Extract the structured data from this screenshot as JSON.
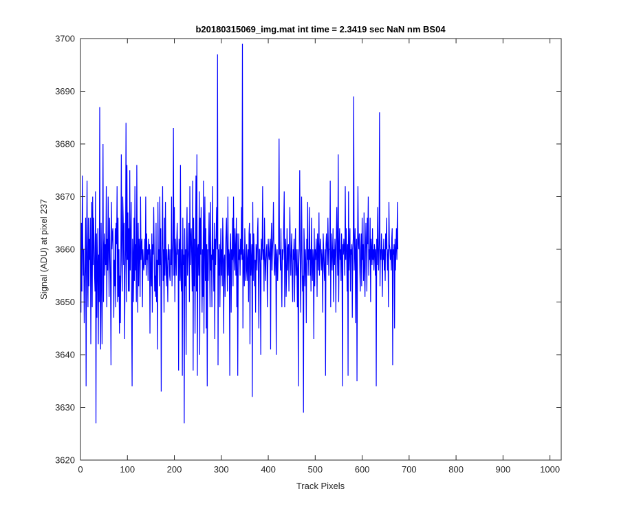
{
  "chart_data": {
    "type": "line",
    "title": "b20180315069_img.mat int time = 2.3419 sec  NaN nm BS04",
    "xlabel": "Track Pixels",
    "ylabel": "Signal (ADU) at pixel 237",
    "xlim": [
      0,
      1024
    ],
    "ylim": [
      3620,
      3700
    ],
    "xticks": [
      0,
      100,
      200,
      300,
      400,
      500,
      600,
      700,
      800,
      900,
      1000
    ],
    "yticks": [
      3620,
      3630,
      3640,
      3650,
      3660,
      3670,
      3680,
      3690,
      3700
    ],
    "grid": false,
    "series_color": "#0000ff",
    "series": [
      {
        "x_start": 1,
        "x_step": 1,
        "values": [
          3648,
          3665,
          3652,
          3674,
          3661,
          3655,
          3660,
          3646,
          3653,
          3658,
          3666,
          3634,
          3660,
          3673,
          3655,
          3649,
          3666,
          3653,
          3662,
          3658,
          3666,
          3642,
          3656,
          3669,
          3649,
          3670,
          3657,
          3666,
          3661,
          3655,
          3652,
          3671,
          3627,
          3663,
          3647,
          3657,
          3664,
          3642,
          3659,
          3650,
          3687,
          3651,
          3641,
          3665,
          3655,
          3642,
          3658,
          3680,
          3650,
          3660,
          3663,
          3655,
          3661,
          3657,
          3672,
          3649,
          3662,
          3656,
          3670,
          3660,
          3651,
          3666,
          3660,
          3654,
          3638,
          3669,
          3660,
          3663,
          3664,
          3658,
          3647,
          3658,
          3653,
          3664,
          3649,
          3665,
          3661,
          3672,
          3650,
          3666,
          3651,
          3660,
          3644,
          3655,
          3646,
          3659,
          3678,
          3658,
          3652,
          3670,
          3666,
          3657,
          3665,
          3643,
          3655,
          3660,
          3684,
          3650,
          3676,
          3658,
          3667,
          3652,
          3664,
          3652,
          3675,
          3656,
          3661,
          3669,
          3647,
          3634,
          3662,
          3659,
          3650,
          3666,
          3654,
          3672,
          3656,
          3661,
          3650,
          3676,
          3659,
          3648,
          3665,
          3653,
          3662,
          3660,
          3651,
          3670,
          3658,
          3661,
          3662,
          3649,
          3660,
          3657,
          3656,
          3658,
          3662,
          3657,
          3670,
          3655,
          3663,
          3658,
          3660,
          3654,
          3662,
          3659,
          3661,
          3644,
          3660,
          3656,
          3653,
          3663,
          3648,
          3661,
          3659,
          3668,
          3660,
          3652,
          3655,
          3651,
          3665,
          3650,
          3658,
          3641,
          3669,
          3657,
          3660,
          3653,
          3670,
          3657,
          3664,
          3633,
          3657,
          3662,
          3672,
          3654,
          3660,
          3648,
          3666,
          3655,
          3669,
          3658,
          3653,
          3660,
          3656,
          3650,
          3661,
          3658,
          3660,
          3655,
          3654,
          3660,
          3657,
          3670,
          3653,
          3659,
          3662,
          3683,
          3655,
          3668,
          3650,
          3662,
          3659,
          3655,
          3661,
          3665,
          3659,
          3660,
          3637,
          3662,
          3660,
          3654,
          3676,
          3655,
          3652,
          3660,
          3636,
          3666,
          3657,
          3659,
          3627,
          3664,
          3653,
          3660,
          3640,
          3662,
          3668,
          3655,
          3658,
          3660,
          3665,
          3650,
          3672,
          3657,
          3662,
          3664,
          3658,
          3652,
          3673,
          3637,
          3666,
          3653,
          3662,
          3644,
          3660,
          3674,
          3652,
          3678,
          3636,
          3660,
          3661,
          3655,
          3671,
          3640,
          3666,
          3659,
          3668,
          3656,
          3648,
          3660,
          3651,
          3673,
          3644,
          3660,
          3670,
          3654,
          3664,
          3645,
          3661,
          3634,
          3660,
          3654,
          3662,
          3667,
          3658,
          3649,
          3669,
          3656,
          3659,
          3649,
          3672,
          3658,
          3660,
          3652,
          3665,
          3643,
          3662,
          3657,
          3663,
          3668,
          3660,
          3697,
          3638,
          3660,
          3655,
          3661,
          3649,
          3658,
          3664,
          3655,
          3660,
          3653,
          3666,
          3661,
          3644,
          3658,
          3659,
          3651,
          3660,
          3663,
          3666,
          3658,
          3652,
          3670,
          3655,
          3660,
          3659,
          3636,
          3661,
          3663,
          3648,
          3660,
          3658,
          3666,
          3653,
          3670,
          3659,
          3656,
          3664,
          3660,
          3655,
          3666,
          3649,
          3663,
          3636,
          3656,
          3663,
          3658,
          3660,
          3655,
          3662,
          3659,
          3668,
          3658,
          3699,
          3645,
          3660,
          3658,
          3653,
          3664,
          3660,
          3654,
          3656,
          3661,
          3654,
          3658,
          3660,
          3650,
          3663,
          3665,
          3642,
          3663,
          3655,
          3658,
          3661,
          3632,
          3669,
          3654,
          3663,
          3660,
          3653,
          3658,
          3648,
          3661,
          3660,
          3656,
          3663,
          3666,
          3654,
          3645,
          3660,
          3660,
          3657,
          3640,
          3662,
          3658,
          3660,
          3672,
          3658,
          3660,
          3652,
          3666,
          3659,
          3654,
          3658,
          3660,
          3661,
          3649,
          3656,
          3662,
          3659,
          3658,
          3660,
          3662,
          3641,
          3661,
          3665,
          3656,
          3660,
          3662,
          3669,
          3660,
          3656,
          3655,
          3661,
          3660,
          3640,
          3659,
          3660,
          3654,
          3658,
          3662,
          3681,
          3659,
          3660,
          3656,
          3664,
          3655,
          3649,
          3660,
          3658,
          3660,
          3665,
          3671,
          3649,
          3660,
          3662,
          3651,
          3655,
          3664,
          3656,
          3660,
          3661,
          3652,
          3660,
          3668,
          3659,
          3655,
          3660,
          3663,
          3654,
          3650,
          3660,
          3658,
          3662,
          3650,
          3659,
          3664,
          3655,
          3660,
          3656,
          3649,
          3660,
          3634,
          3657,
          3660,
          3675,
          3660,
          3648,
          3656,
          3670,
          3660,
          3652,
          3655,
          3629,
          3664,
          3660,
          3653,
          3660,
          3657,
          3646,
          3662,
          3658,
          3669,
          3655,
          3660,
          3658,
          3668,
          3655,
          3660,
          3652,
          3666,
          3658,
          3654,
          3660,
          3658,
          3643,
          3664,
          3653,
          3660,
          3658,
          3662,
          3659,
          3651,
          3663,
          3660,
          3656,
          3667,
          3655,
          3660,
          3662,
          3659,
          3656,
          3660,
          3658,
          3648,
          3663,
          3660,
          3656,
          3654,
          3660,
          3636,
          3661,
          3663,
          3660,
          3657,
          3666,
          3661,
          3655,
          3660,
          3660,
          3673,
          3649,
          3663,
          3660,
          3656,
          3660,
          3664,
          3650,
          3660,
          3657,
          3662,
          3660,
          3648,
          3663,
          3668,
          3660,
          3655,
          3678,
          3650,
          3660,
          3664,
          3658,
          3660,
          3654,
          3663,
          3660,
          3634,
          3661,
          3659,
          3662,
          3660,
          3655,
          3672,
          3658,
          3664,
          3660,
          3652,
          3661,
          3636,
          3671,
          3656,
          3660,
          3664,
          3652,
          3660,
          3659,
          3661,
          3647,
          3660,
          3662,
          3689,
          3656,
          3660,
          3664,
          3646,
          3660,
          3662,
          3635,
          3658,
          3672,
          3661,
          3660,
          3663,
          3656,
          3652,
          3660,
          3663,
          3653,
          3666,
          3658,
          3661,
          3654,
          3667,
          3656,
          3651,
          3660,
          3665,
          3660,
          3652,
          3666,
          3661,
          3670,
          3655,
          3660,
          3658,
          3666,
          3650,
          3662,
          3660,
          3657,
          3664,
          3658,
          3660,
          3656,
          3661,
          3660,
          3655,
          3660,
          3634,
          3662,
          3657,
          3668,
          3660,
          3656,
          3661,
          3686,
          3653,
          3660,
          3658,
          3663,
          3660,
          3651,
          3660,
          3658,
          3662,
          3656,
          3660,
          3654,
          3663,
          3660,
          3666,
          3659,
          3656,
          3660,
          3649,
          3669,
          3661,
          3660,
          3658,
          3660,
          3656,
          3662,
          3664,
          3638,
          3660,
          3659,
          3661,
          3645,
          3662,
          3656,
          3660,
          3664,
          3658,
          3669,
          3660
        ]
      }
    ]
  }
}
